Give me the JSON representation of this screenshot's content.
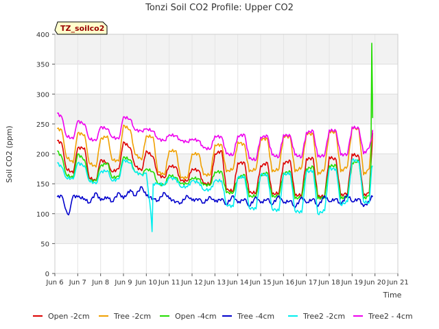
{
  "chart_data": {
    "type": "line",
    "title": "Tonzi Soil CO2 Profile: Upper CO2",
    "xlabel": "Time",
    "ylabel": "Soil CO2 (ppm)",
    "site_label": "TZ_soilco2",
    "xlim": [
      6,
      21
    ],
    "ylim": [
      0,
      400
    ],
    "x_ticks": [
      {
        "x": 6,
        "label": "Jun 6"
      },
      {
        "x": 7,
        "label": "Jun 7"
      },
      {
        "x": 8,
        "label": "Jun 8"
      },
      {
        "x": 9,
        "label": "Jun 9"
      },
      {
        "x": 10,
        "label": "Jun 10"
      },
      {
        "x": 11,
        "label": "Jun 11"
      },
      {
        "x": 12,
        "label": "Jun 12"
      },
      {
        "x": 13,
        "label": "Jun 13"
      },
      {
        "x": 14,
        "label": "Jun 14"
      },
      {
        "x": 15,
        "label": "Jun 15"
      },
      {
        "x": 16,
        "label": "Jun 16"
      },
      {
        "x": 17,
        "label": "Jun 17"
      },
      {
        "x": 18,
        "label": "Jun 18"
      },
      {
        "x": 19,
        "label": "Jun 19"
      },
      {
        "x": 20,
        "label": "Jun 20"
      },
      {
        "x": 21,
        "label": "Jun 21"
      }
    ],
    "y_ticks": [
      0,
      50,
      100,
      150,
      200,
      250,
      300,
      350,
      400
    ],
    "grid": true,
    "legend_position": "bottom",
    "series": [
      {
        "name": "Open -2cm",
        "color": "#dd0000",
        "x": [
          6.1,
          6.3,
          6.5,
          6.8,
          7.0,
          7.3,
          7.5,
          7.8,
          8.0,
          8.3,
          8.5,
          8.8,
          9.0,
          9.3,
          9.5,
          9.8,
          10.0,
          10.3,
          10.5,
          10.8,
          11.0,
          11.3,
          11.5,
          11.8,
          12.0,
          12.3,
          12.5,
          12.8,
          13.0,
          13.3,
          13.5,
          13.8,
          14.0,
          14.3,
          14.5,
          14.8,
          15.0,
          15.3,
          15.5,
          15.8,
          16.0,
          16.3,
          16.5,
          16.8,
          17.0,
          17.3,
          17.5,
          17.8,
          18.0,
          18.3,
          18.5,
          18.8,
          19.0,
          19.3,
          19.5,
          19.75,
          19.85,
          19.9
        ],
        "y": [
          222,
          218,
          175,
          168,
          210,
          210,
          160,
          155,
          190,
          185,
          170,
          175,
          220,
          210,
          180,
          172,
          205,
          195,
          165,
          160,
          180,
          178,
          155,
          155,
          175,
          172,
          150,
          150,
          200,
          205,
          140,
          138,
          185,
          185,
          135,
          135,
          180,
          185,
          132,
          135,
          185,
          188,
          130,
          132,
          192,
          192,
          128,
          130,
          195,
          190,
          130,
          135,
          200,
          195,
          130,
          135,
          200,
          235
        ]
      },
      {
        "name": "Tree -2cm",
        "color": "#f0a000",
        "x": [
          6.1,
          6.3,
          6.5,
          6.8,
          7.0,
          7.3,
          7.5,
          7.8,
          8.0,
          8.3,
          8.5,
          8.8,
          9.0,
          9.3,
          9.5,
          9.8,
          10.0,
          10.3,
          10.5,
          10.8,
          11.0,
          11.3,
          11.5,
          11.8,
          12.0,
          12.3,
          12.5,
          12.8,
          13.0,
          13.3,
          13.5,
          13.8,
          14.0,
          14.3,
          14.5,
          14.8,
          15.0,
          15.3,
          15.5,
          15.8,
          16.0,
          16.3,
          16.5,
          16.8,
          17.0,
          17.3,
          17.5,
          17.8,
          18.0,
          18.3,
          18.5,
          18.8,
          19.0,
          19.3,
          19.5,
          19.75,
          19.85,
          19.9
        ],
        "y": [
          242,
          240,
          195,
          185,
          235,
          232,
          185,
          178,
          225,
          230,
          190,
          188,
          248,
          240,
          200,
          190,
          230,
          228,
          170,
          165,
          205,
          205,
          160,
          160,
          200,
          200,
          165,
          165,
          215,
          215,
          170,
          175,
          220,
          215,
          170,
          175,
          225,
          225,
          170,
          175,
          230,
          228,
          170,
          178,
          235,
          232,
          165,
          175,
          238,
          235,
          170,
          180,
          245,
          240,
          165,
          175,
          220,
          240
        ]
      },
      {
        "name": "Open -4cm",
        "color": "#22dd00",
        "x": [
          6.1,
          6.3,
          6.5,
          6.8,
          7.0,
          7.3,
          7.5,
          7.8,
          8.0,
          8.3,
          8.5,
          8.8,
          9.0,
          9.3,
          9.5,
          9.8,
          10.0,
          10.3,
          10.5,
          10.8,
          11.0,
          11.3,
          11.5,
          11.8,
          12.0,
          12.3,
          12.5,
          12.8,
          13.0,
          13.3,
          13.5,
          13.8,
          14.0,
          14.3,
          14.5,
          14.8,
          15.0,
          15.3,
          15.5,
          15.8,
          16.0,
          16.3,
          16.5,
          16.8,
          17.0,
          17.3,
          17.5,
          17.8,
          18.0,
          18.3,
          18.5,
          18.8,
          19.0,
          19.3,
          19.5,
          19.75,
          19.82,
          19.86,
          19.9
        ],
        "y": [
          205,
          195,
          165,
          160,
          200,
          190,
          155,
          155,
          180,
          185,
          160,
          162,
          195,
          190,
          170,
          165,
          175,
          170,
          150,
          148,
          165,
          160,
          150,
          150,
          160,
          158,
          148,
          148,
          170,
          170,
          135,
          135,
          160,
          165,
          128,
          130,
          165,
          168,
          128,
          130,
          168,
          170,
          125,
          128,
          175,
          178,
          125,
          128,
          180,
          180,
          125,
          130,
          185,
          188,
          125,
          130,
          175,
          385,
          260
        ]
      },
      {
        "name": "Tree -4cm",
        "color": "#0000cc",
        "x": [
          6.1,
          6.3,
          6.5,
          6.6,
          6.8,
          7.0,
          7.3,
          7.5,
          7.8,
          8.0,
          8.3,
          8.5,
          8.8,
          9.0,
          9.3,
          9.5,
          9.8,
          10.0,
          10.3,
          10.5,
          10.8,
          11.0,
          11.3,
          11.5,
          11.8,
          12.0,
          12.3,
          12.5,
          12.8,
          13.0,
          13.3,
          13.5,
          13.8,
          14.0,
          14.3,
          14.5,
          14.8,
          15.0,
          15.3,
          15.5,
          15.8,
          16.0,
          16.3,
          16.5,
          16.8,
          17.0,
          17.3,
          17.5,
          17.8,
          18.0,
          18.3,
          18.5,
          18.8,
          19.0,
          19.3,
          19.5,
          19.75,
          19.85,
          19.9
        ],
        "y": [
          128,
          130,
          105,
          98,
          130,
          128,
          125,
          118,
          135,
          122,
          128,
          120,
          135,
          125,
          140,
          130,
          145,
          130,
          125,
          122,
          135,
          125,
          120,
          118,
          130,
          122,
          125,
          118,
          128,
          120,
          125,
          115,
          130,
          118,
          125,
          112,
          128,
          118,
          125,
          115,
          130,
          118,
          122,
          110,
          128,
          118,
          125,
          112,
          130,
          120,
          125,
          115,
          132,
          120,
          125,
          112,
          120,
          130,
          130
        ]
      },
      {
        "name": "Tree2 -2cm",
        "color": "#00eeee",
        "x": [
          6.1,
          6.3,
          6.5,
          6.8,
          7.0,
          7.3,
          7.5,
          7.8,
          8.0,
          8.3,
          8.5,
          8.8,
          9.0,
          9.3,
          9.5,
          9.8,
          10.0,
          10.2,
          10.25,
          10.3,
          10.5,
          10.8,
          11.0,
          11.3,
          11.5,
          11.8,
          12.0,
          12.3,
          12.5,
          12.8,
          13.0,
          13.3,
          13.5,
          13.8,
          14.0,
          14.3,
          14.5,
          14.8,
          15.0,
          15.3,
          15.5,
          15.8,
          16.0,
          16.3,
          16.5,
          16.8,
          17.0,
          17.3,
          17.5,
          17.8,
          18.0,
          18.3,
          18.5,
          18.8,
          19.0,
          19.3,
          19.5,
          19.75,
          19.85,
          19.9
        ],
        "y": [
          185,
          178,
          160,
          158,
          185,
          180,
          155,
          150,
          170,
          172,
          155,
          158,
          190,
          185,
          170,
          165,
          168,
          100,
          70,
          150,
          150,
          148,
          160,
          158,
          145,
          145,
          155,
          152,
          140,
          140,
          155,
          155,
          115,
          112,
          160,
          162,
          110,
          108,
          165,
          165,
          108,
          105,
          165,
          168,
          105,
          102,
          170,
          172,
          100,
          105,
          175,
          175,
          115,
          120,
          190,
          188,
          120,
          118,
          175,
          180
        ]
      },
      {
        "name": "Tree2 - 4cm",
        "color": "#ee00ee",
        "x": [
          6.1,
          6.3,
          6.5,
          6.8,
          7.0,
          7.3,
          7.5,
          7.8,
          8.0,
          8.3,
          8.5,
          8.8,
          9.0,
          9.3,
          9.5,
          9.8,
          10.0,
          10.3,
          10.5,
          10.8,
          11.0,
          11.3,
          11.5,
          11.8,
          12.0,
          12.3,
          12.5,
          12.8,
          13.0,
          13.3,
          13.5,
          13.8,
          14.0,
          14.3,
          14.5,
          14.8,
          15.0,
          15.3,
          15.5,
          15.8,
          16.0,
          16.3,
          16.5,
          16.8,
          17.0,
          17.3,
          17.5,
          17.8,
          18.0,
          18.3,
          18.5,
          18.8,
          19.0,
          19.3,
          19.5,
          19.75,
          19.85,
          19.9
        ],
        "y": [
          268,
          262,
          230,
          225,
          255,
          250,
          225,
          222,
          245,
          242,
          228,
          225,
          262,
          258,
          240,
          238,
          242,
          238,
          225,
          222,
          232,
          230,
          222,
          220,
          225,
          222,
          210,
          208,
          230,
          228,
          200,
          198,
          230,
          232,
          192,
          190,
          228,
          230,
          198,
          195,
          232,
          230,
          198,
          195,
          236,
          238,
          195,
          198,
          240,
          238,
          198,
          200,
          245,
          242,
          200,
          210,
          225,
          240
        ]
      }
    ]
  }
}
